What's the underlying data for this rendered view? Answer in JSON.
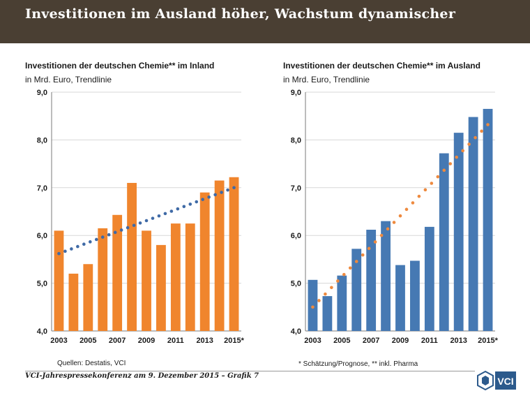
{
  "banner": {
    "title": "Investitionen im Ausland höher, Wachstum dynamischer"
  },
  "chart_data": [
    {
      "type": "bar",
      "title": "Investitionen der deutschen Chemie** im Inland",
      "subtitle": "in Mrd. Euro, Trendlinie",
      "categories": [
        "2003",
        "2004",
        "2005",
        "2006",
        "2007",
        "2008",
        "2009",
        "2010",
        "2011",
        "2012",
        "2013",
        "2014",
        "2015*"
      ],
      "x_tick_labels": [
        "2003",
        "2005",
        "2007",
        "2009",
        "2011",
        "2013",
        "2015*"
      ],
      "values": [
        6.1,
        5.2,
        5.4,
        6.15,
        6.43,
        7.1,
        6.1,
        5.8,
        6.25,
        6.25,
        6.9,
        7.15,
        7.22
      ],
      "trend": {
        "start": 5.62,
        "end": 7.0
      },
      "ylim": [
        4.0,
        9.0
      ],
      "y_tick_labels": [
        "4,0",
        "5,0",
        "6,0",
        "7,0",
        "8,0",
        "9,0"
      ],
      "bar_color": "#f0852d",
      "trend_color": "#3f6aa6"
    },
    {
      "type": "bar",
      "title": "Investitionen der deutschen Chemie** im Ausland",
      "subtitle": "in Mrd. Euro, Trendlinie",
      "categories": [
        "2003",
        "2004",
        "2005",
        "2006",
        "2007",
        "2008",
        "2009",
        "2010",
        "2011",
        "2012",
        "2013",
        "2014",
        "2015*"
      ],
      "x_tick_labels": [
        "2003",
        "2005",
        "2007",
        "2009",
        "2011",
        "2013",
        "2015*"
      ],
      "values": [
        5.07,
        4.73,
        5.16,
        5.72,
        6.12,
        6.3,
        5.38,
        5.47,
        6.18,
        7.72,
        8.15,
        8.48,
        8.65
      ],
      "trend": {
        "start": 4.5,
        "end": 8.32
      },
      "ylim": [
        4.0,
        9.0
      ],
      "y_tick_labels": [
        "4,0",
        "5,0",
        "6,0",
        "7,0",
        "8,0",
        "9,0"
      ],
      "bar_color": "#4679b3",
      "trend_color": "#ee8a3f"
    }
  ],
  "footer": {
    "source": "Quellen: Destatis, VCI",
    "footnote": "* Schätzung/Prognose, ** inkl. Pharma",
    "caption": "VCI-Jahrespressekonferenz am 9. Dezember 2015 – Grafik 7",
    "logo_text": "VCI"
  }
}
